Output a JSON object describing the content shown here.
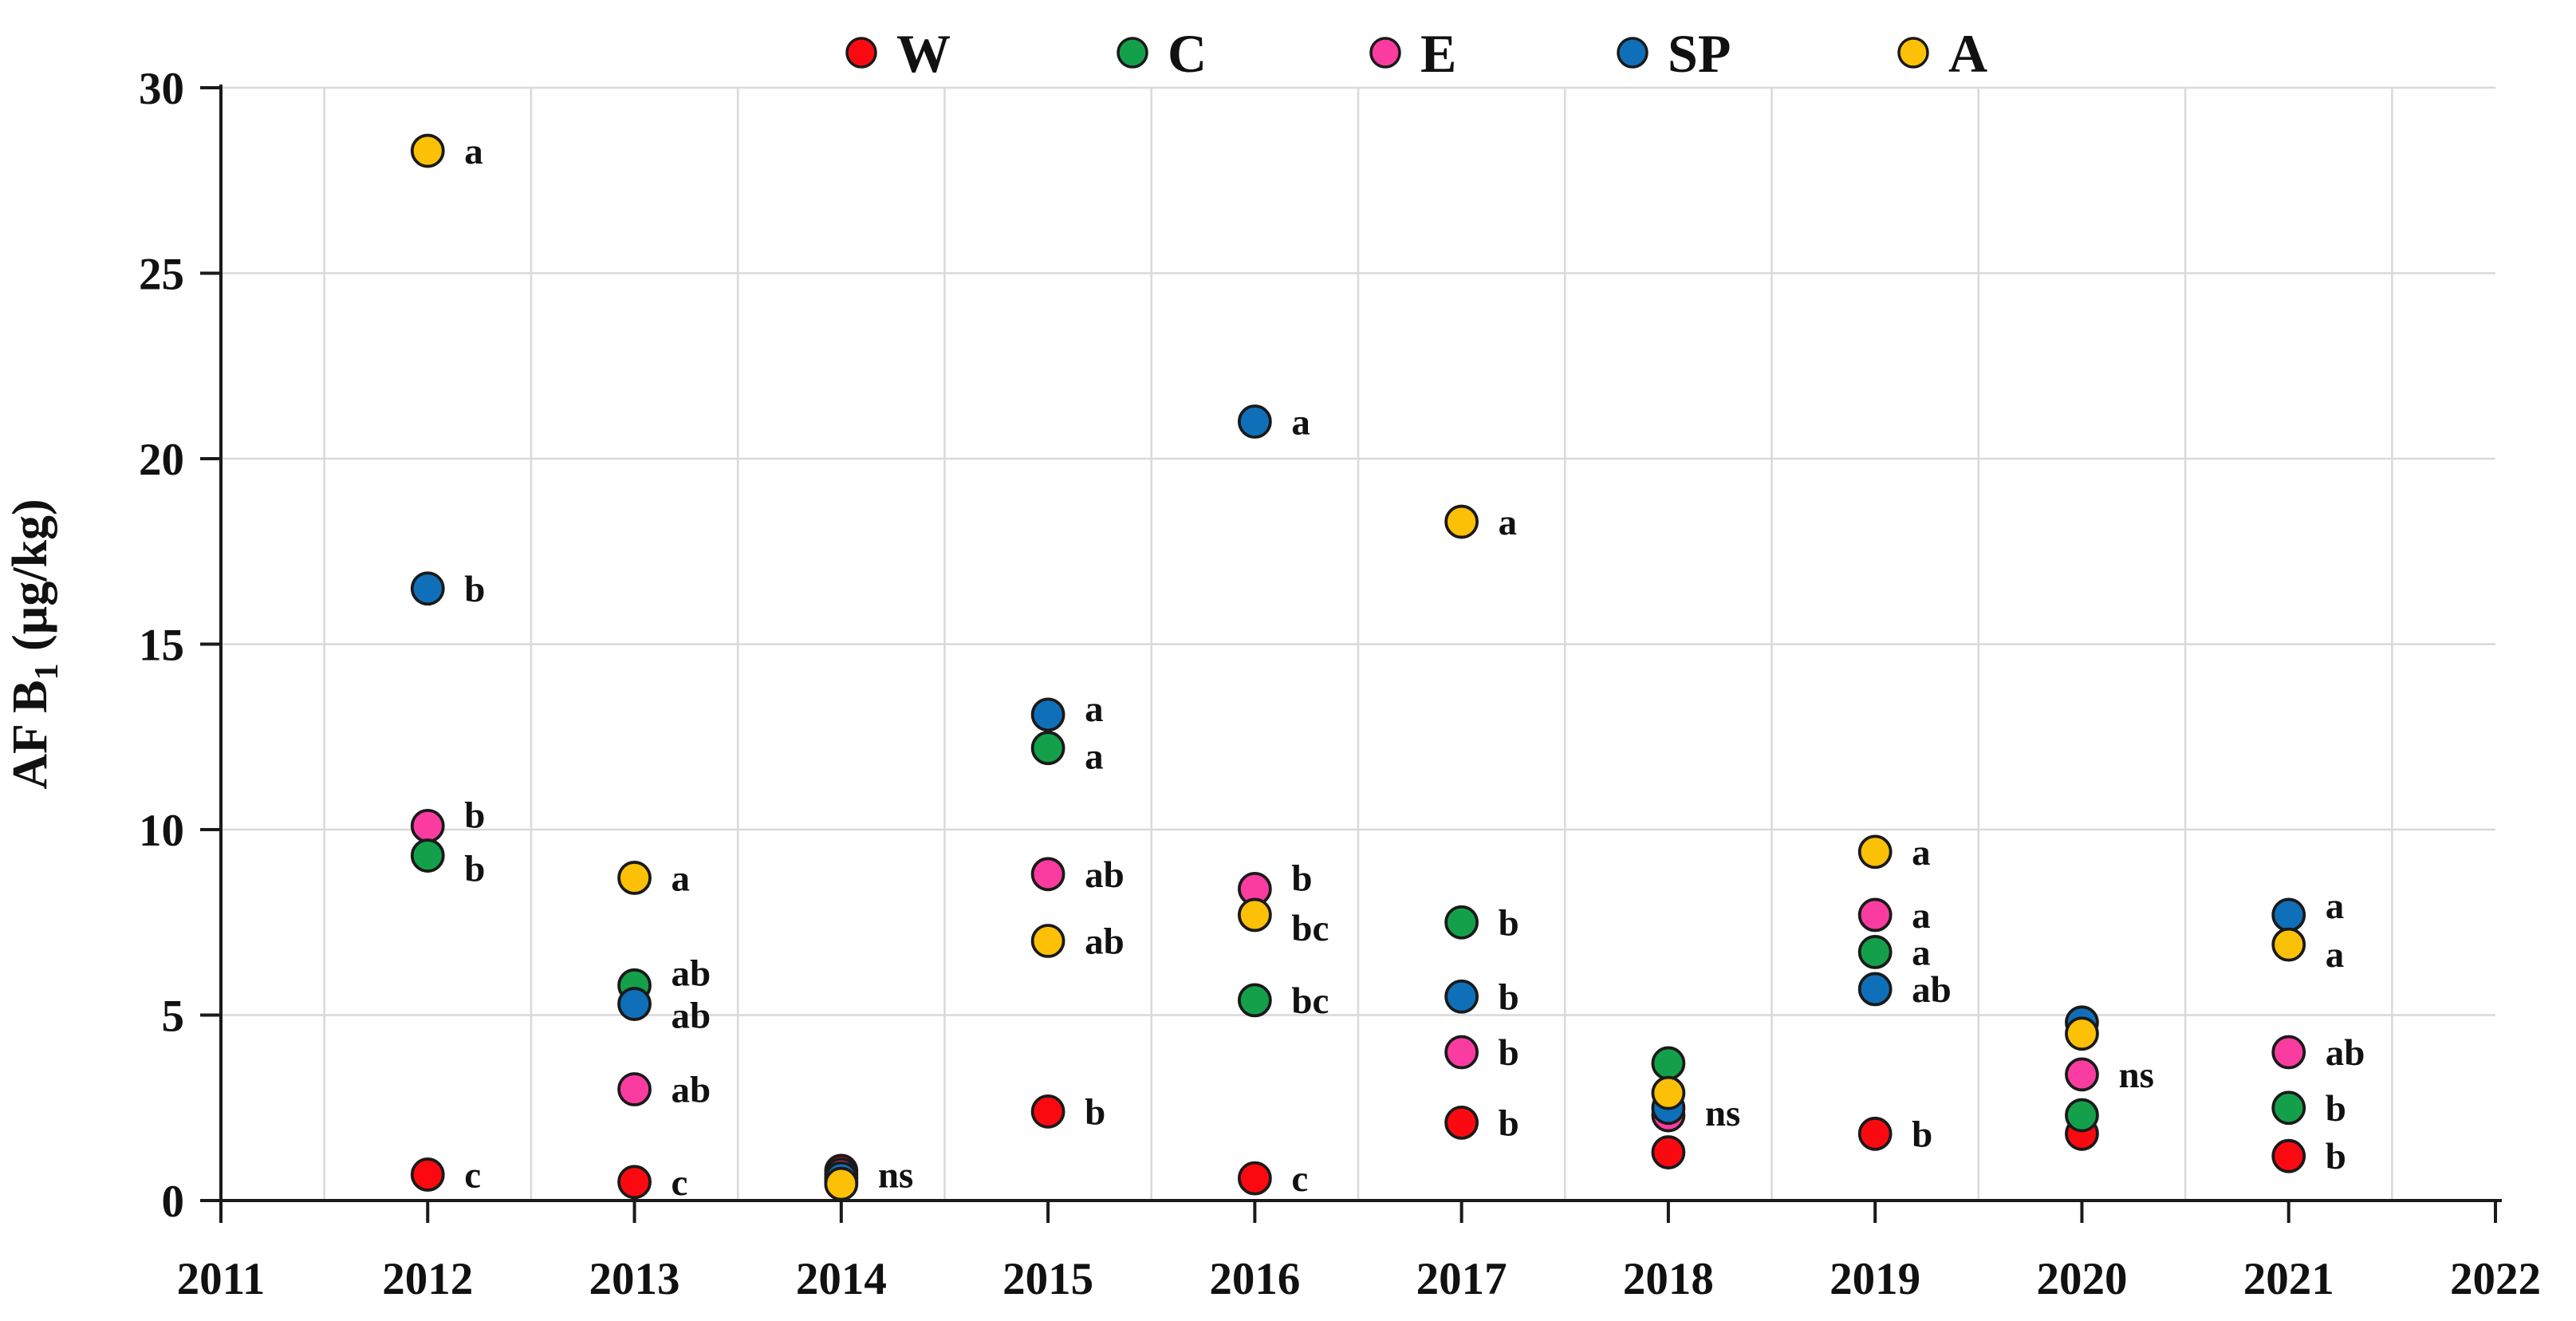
{
  "figure": {
    "background": "#ffffff",
    "axis_color": "#1a1a1a",
    "grid_color": "#d9d9d9",
    "marker_outline": "#1a1a1a"
  },
  "chart_data": {
    "type": "scatter",
    "title": "",
    "xlabel": "",
    "ylabel": "AF B1 (µg/kg)",
    "ylabel_parts": {
      "main": "AF B",
      "sub": "1",
      "unit": " (µg/kg)"
    },
    "xlim": [
      2011,
      2022
    ],
    "ylim": [
      0,
      30
    ],
    "x_ticks": [
      2011,
      2012,
      2013,
      2014,
      2015,
      2016,
      2017,
      2018,
      2019,
      2020,
      2021,
      2022
    ],
    "y_ticks": [
      0,
      5,
      10,
      15,
      20,
      25,
      30
    ],
    "grid": true,
    "legend_position": "top-center",
    "series": [
      {
        "name": "W",
        "color": "#fa0a10"
      },
      {
        "name": "C",
        "color": "#14a04b"
      },
      {
        "name": "E",
        "color": "#fa3ca0"
      },
      {
        "name": "SP",
        "color": "#0f70b9"
      },
      {
        "name": "A",
        "color": "#fcc006"
      }
    ],
    "years": [
      {
        "year": 2012,
        "points": [
          {
            "series": "A",
            "value": 28.3,
            "sig": "a"
          },
          {
            "series": "SP",
            "value": 16.5,
            "sig": "b"
          },
          {
            "series": "E",
            "value": 10.1,
            "sig": "b",
            "ldy": -14
          },
          {
            "series": "C",
            "value": 9.3,
            "sig": "b",
            "ldy": 16
          },
          {
            "series": "W",
            "value": 0.7,
            "sig": "c"
          }
        ]
      },
      {
        "year": 2013,
        "points": [
          {
            "series": "A",
            "value": 8.7,
            "sig": "a"
          },
          {
            "series": "C",
            "value": 5.8,
            "sig": "ab",
            "ldy": -16
          },
          {
            "series": "SP",
            "value": 5.3,
            "sig": "ab",
            "ldy": 14
          },
          {
            "series": "E",
            "value": 3.0,
            "sig": "ab"
          },
          {
            "series": "W",
            "value": 0.5,
            "sig": "c"
          }
        ]
      },
      {
        "year": 2014,
        "points": [
          {
            "series": "C",
            "value": 0.5
          },
          {
            "series": "W",
            "value": 0.8
          },
          {
            "series": "E",
            "value": 0.7,
            "sig": "ns"
          },
          {
            "series": "SP",
            "value": 0.6
          },
          {
            "series": "A",
            "value": 0.45
          }
        ]
      },
      {
        "year": 2015,
        "points": [
          {
            "series": "SP",
            "value": 13.1,
            "sig": "a",
            "ldy": -8
          },
          {
            "series": "C",
            "value": 12.2,
            "sig": "a",
            "ldy": 10
          },
          {
            "series": "E",
            "value": 8.8,
            "sig": "ab"
          },
          {
            "series": "A",
            "value": 7.0,
            "sig": "ab"
          },
          {
            "series": "W",
            "value": 2.4,
            "sig": "b"
          }
        ]
      },
      {
        "year": 2016,
        "points": [
          {
            "series": "SP",
            "value": 21.0,
            "sig": "a"
          },
          {
            "series": "E",
            "value": 8.4,
            "sig": "b",
            "ldy": -14
          },
          {
            "series": "A",
            "value": 7.7,
            "sig": "bc",
            "ldy": 16
          },
          {
            "series": "C",
            "value": 5.4,
            "sig": "bc"
          },
          {
            "series": "W",
            "value": 0.6,
            "sig": "c"
          }
        ]
      },
      {
        "year": 2017,
        "points": [
          {
            "series": "A",
            "value": 18.3,
            "sig": "a"
          },
          {
            "series": "C",
            "value": 7.5,
            "sig": "b"
          },
          {
            "series": "SP",
            "value": 5.5,
            "sig": "b"
          },
          {
            "series": "E",
            "value": 4.0,
            "sig": "b"
          },
          {
            "series": "W",
            "value": 2.1,
            "sig": "b"
          }
        ]
      },
      {
        "year": 2018,
        "points": [
          {
            "series": "C",
            "value": 3.7
          },
          {
            "series": "E",
            "value": 2.3
          },
          {
            "series": "SP",
            "value": 2.5,
            "sig": "ns",
            "ldy": 6
          },
          {
            "series": "A",
            "value": 2.9
          },
          {
            "series": "W",
            "value": 1.3
          }
        ]
      },
      {
        "year": 2019,
        "points": [
          {
            "series": "A",
            "value": 9.4,
            "sig": "a"
          },
          {
            "series": "E",
            "value": 7.7,
            "sig": "a"
          },
          {
            "series": "C",
            "value": 6.7,
            "sig": "a"
          },
          {
            "series": "SP",
            "value": 5.7,
            "sig": "ab"
          },
          {
            "series": "W",
            "value": 1.8,
            "sig": "b"
          }
        ]
      },
      {
        "year": 2020,
        "points": [
          {
            "series": "SP",
            "value": 4.8
          },
          {
            "series": "A",
            "value": 4.5
          },
          {
            "series": "E",
            "value": 3.4,
            "sig": "ns"
          },
          {
            "series": "W",
            "value": 1.8
          },
          {
            "series": "C",
            "value": 2.3
          }
        ]
      },
      {
        "year": 2021,
        "points": [
          {
            "series": "SP",
            "value": 7.7,
            "sig": "a",
            "ldy": -12
          },
          {
            "series": "A",
            "value": 6.9,
            "sig": "a",
            "ldy": 12
          },
          {
            "series": "E",
            "value": 4.0,
            "sig": "ab"
          },
          {
            "series": "C",
            "value": 2.5,
            "sig": "b"
          },
          {
            "series": "W",
            "value": 1.2,
            "sig": "b"
          }
        ]
      }
    ]
  }
}
